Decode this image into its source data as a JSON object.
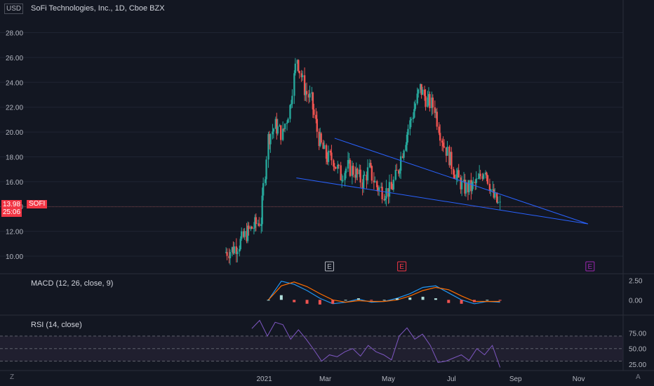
{
  "toolbar": {
    "currency": "USD",
    "z_label": "Z",
    "a_label": "A"
  },
  "chart_data": [
    {
      "type": "candlestick",
      "title": "SoFi Technologies, Inc., 1D, Cboe BZX",
      "symbol": "SOFI",
      "last_price": "13.98",
      "countdown": "25:06",
      "y_ticks": [
        "28.00",
        "26.00",
        "24.00",
        "22.00",
        "20.00",
        "18.00",
        "16.00",
        "14.00",
        "12.00",
        "10.00"
      ],
      "ylim": [
        8.7,
        29.5
      ],
      "x_ticks": [
        "2021",
        "Mar",
        "May",
        "Jul",
        "Sep",
        "Nov"
      ],
      "events": [
        "E",
        "E",
        "E"
      ],
      "series": [
        {
          "date": "2020-11-24",
          "close": 10.3
        },
        {
          "date": "2020-12-01",
          "close": 10.5
        },
        {
          "date": "2020-12-08",
          "close": 11.0
        },
        {
          "date": "2020-12-15",
          "close": 11.8
        },
        {
          "date": "2020-12-22",
          "close": 12.4
        },
        {
          "date": "2020-12-29",
          "close": 12.9
        },
        {
          "date": "2021-01-05",
          "close": 19.5
        },
        {
          "date": "2021-01-12",
          "close": 20.5
        },
        {
          "date": "2021-01-19",
          "close": 19.8
        },
        {
          "date": "2021-01-26",
          "close": 22.0
        },
        {
          "date": "2021-02-02",
          "close": 26.0
        },
        {
          "date": "2021-02-09",
          "close": 23.5
        },
        {
          "date": "2021-02-16",
          "close": 22.5
        },
        {
          "date": "2021-02-23",
          "close": 19.5
        },
        {
          "date": "2021-03-02",
          "close": 18.0
        },
        {
          "date": "2021-03-09",
          "close": 17.8
        },
        {
          "date": "2021-03-16",
          "close": 16.5
        },
        {
          "date": "2021-03-23",
          "close": 17.2
        },
        {
          "date": "2021-03-30",
          "close": 16.8
        },
        {
          "date": "2021-04-06",
          "close": 16.0
        },
        {
          "date": "2021-04-13",
          "close": 17.0
        },
        {
          "date": "2021-04-20",
          "close": 15.6
        },
        {
          "date": "2021-04-27",
          "close": 15.2
        },
        {
          "date": "2021-05-04",
          "close": 15.3
        },
        {
          "date": "2021-05-11",
          "close": 17.0
        },
        {
          "date": "2021-05-18",
          "close": 19.5
        },
        {
          "date": "2021-05-25",
          "close": 21.5
        },
        {
          "date": "2021-06-01",
          "close": 23.5
        },
        {
          "date": "2021-06-08",
          "close": 22.5
        },
        {
          "date": "2021-06-15",
          "close": 22.0
        },
        {
          "date": "2021-06-22",
          "close": 19.5
        },
        {
          "date": "2021-06-29",
          "close": 18.0
        },
        {
          "date": "2021-07-06",
          "close": 16.5
        },
        {
          "date": "2021-07-13",
          "close": 15.5
        },
        {
          "date": "2021-07-20",
          "close": 15.5
        },
        {
          "date": "2021-07-27",
          "close": 16.0
        },
        {
          "date": "2021-08-03",
          "close": 17.2
        },
        {
          "date": "2021-08-10",
          "close": 14.9
        },
        {
          "date": "2021-08-17",
          "close": 13.98
        }
      ],
      "trendlines": [
        {
          "from": {
            "date": "2021-03-10",
            "price": 19.5
          },
          "to": {
            "date": "2021-11-10",
            "price": 12.6
          }
        },
        {
          "from": {
            "date": "2021-02-01",
            "price": 16.3
          },
          "to": {
            "date": "2021-11-10",
            "price": 12.6
          }
        }
      ],
      "colors": {
        "up": "#26a69a",
        "down": "#ef5350",
        "trend": "#2962ff",
        "grid": "#1f2433",
        "current": "#f23645"
      }
    },
    {
      "type": "macd",
      "title": "MACD (12, 26, close, 9)",
      "y_ticks": [
        "2.50",
        "0.00"
      ],
      "ylim": [
        -1.6,
        3.0
      ],
      "series": [
        {
          "name": "MACD",
          "values": [
            0.0,
            2.4,
            2.0,
            1.2,
            0.2,
            -0.5,
            -0.3,
            0.1,
            -0.3,
            -0.2,
            0.2,
            0.8,
            1.6,
            1.8,
            0.9,
            0.0,
            -0.5,
            -0.2,
            -0.3
          ]
        },
        {
          "name": "Signal",
          "values": [
            0.0,
            1.8,
            2.3,
            1.7,
            0.8,
            0.0,
            -0.3,
            -0.1,
            -0.2,
            -0.2,
            0.0,
            0.5,
            1.2,
            1.6,
            1.3,
            0.5,
            -0.2,
            -0.2,
            -0.2
          ]
        }
      ],
      "colors": {
        "macd": "#2196f3",
        "signal": "#ff6d00"
      }
    },
    {
      "type": "rsi",
      "title": "RSI (14, close)",
      "y_ticks": [
        "75.00",
        "50.00",
        "25.00"
      ],
      "ylim": [
        15,
        100
      ],
      "bands": [
        70,
        50,
        30
      ],
      "values": [
        82,
        95,
        70,
        92,
        88,
        65,
        80,
        65,
        48,
        30,
        40,
        37,
        45,
        50,
        38,
        55,
        45,
        40,
        32,
        70,
        83,
        65,
        73,
        55,
        28,
        30,
        35,
        40,
        31,
        50,
        40,
        55,
        20
      ],
      "colors": {
        "line": "#7e57c2",
        "band": "#2a2438"
      }
    }
  ]
}
